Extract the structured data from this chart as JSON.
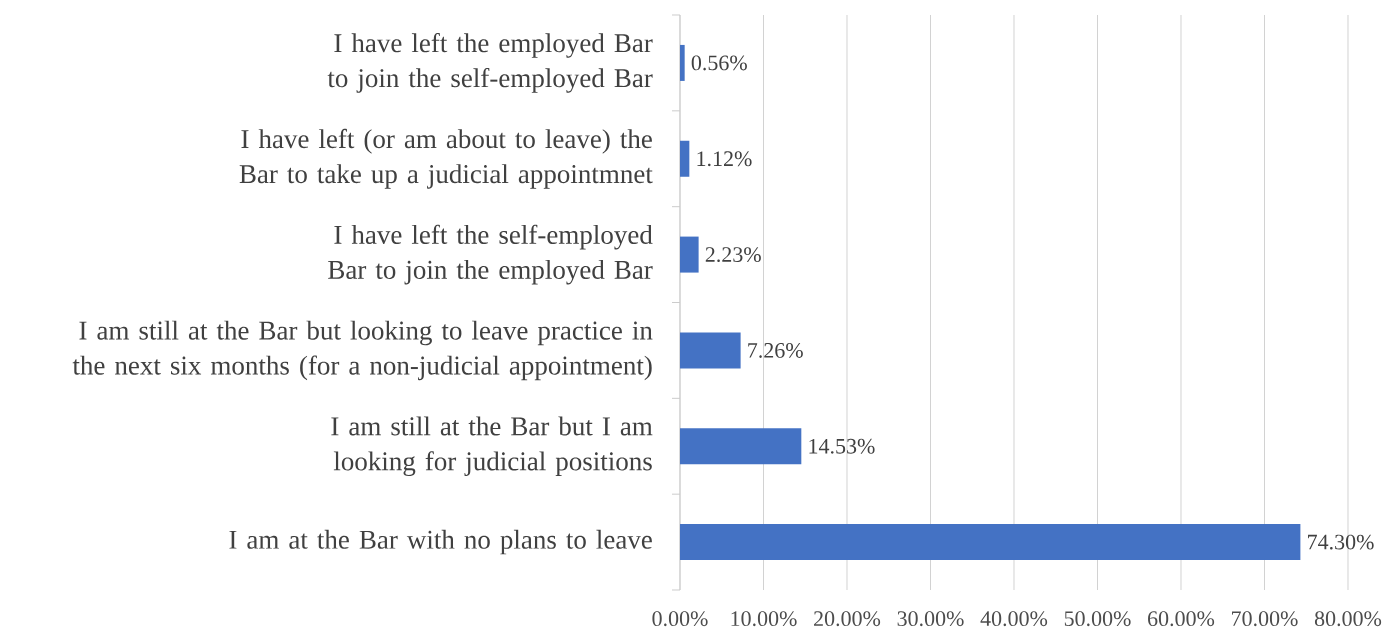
{
  "chart_data": {
    "type": "bar",
    "orientation": "horizontal",
    "categories": [
      "I have left the employed Bar to join the self-employed Bar",
      "I have left (or am about to leave) the Bar to take up a judicial appointmnet",
      "I have left the self-employed Bar to join the employed Bar",
      "I am still at the Bar but looking to leave practice in the next six months (for a non-judicial appointment)",
      "I am still at the Bar but  I am looking for judicial positions",
      "I am at the Bar with no plans to leave"
    ],
    "values": [
      0.56,
      1.12,
      2.23,
      7.26,
      14.53,
      74.3
    ],
    "value_labels": [
      "0.56%",
      "1.12%",
      "2.23%",
      "7.26%",
      "14.53%",
      "74.30%"
    ],
    "color": "#4472c4",
    "xlim": [
      0,
      80
    ],
    "xticks": [
      {
        "value": 0,
        "label": "0.00%"
      },
      {
        "value": 10,
        "label": "10.00%"
      },
      {
        "value": 20,
        "label": "20.00%"
      },
      {
        "value": 30,
        "label": "30.00%"
      },
      {
        "value": 40,
        "label": "40.00%"
      },
      {
        "value": 50,
        "label": "50.00%"
      },
      {
        "value": 60,
        "label": "60.00%"
      },
      {
        "value": 70,
        "label": "70.00%"
      },
      {
        "value": 80,
        "label": "80.00%"
      }
    ],
    "grid": "x"
  }
}
